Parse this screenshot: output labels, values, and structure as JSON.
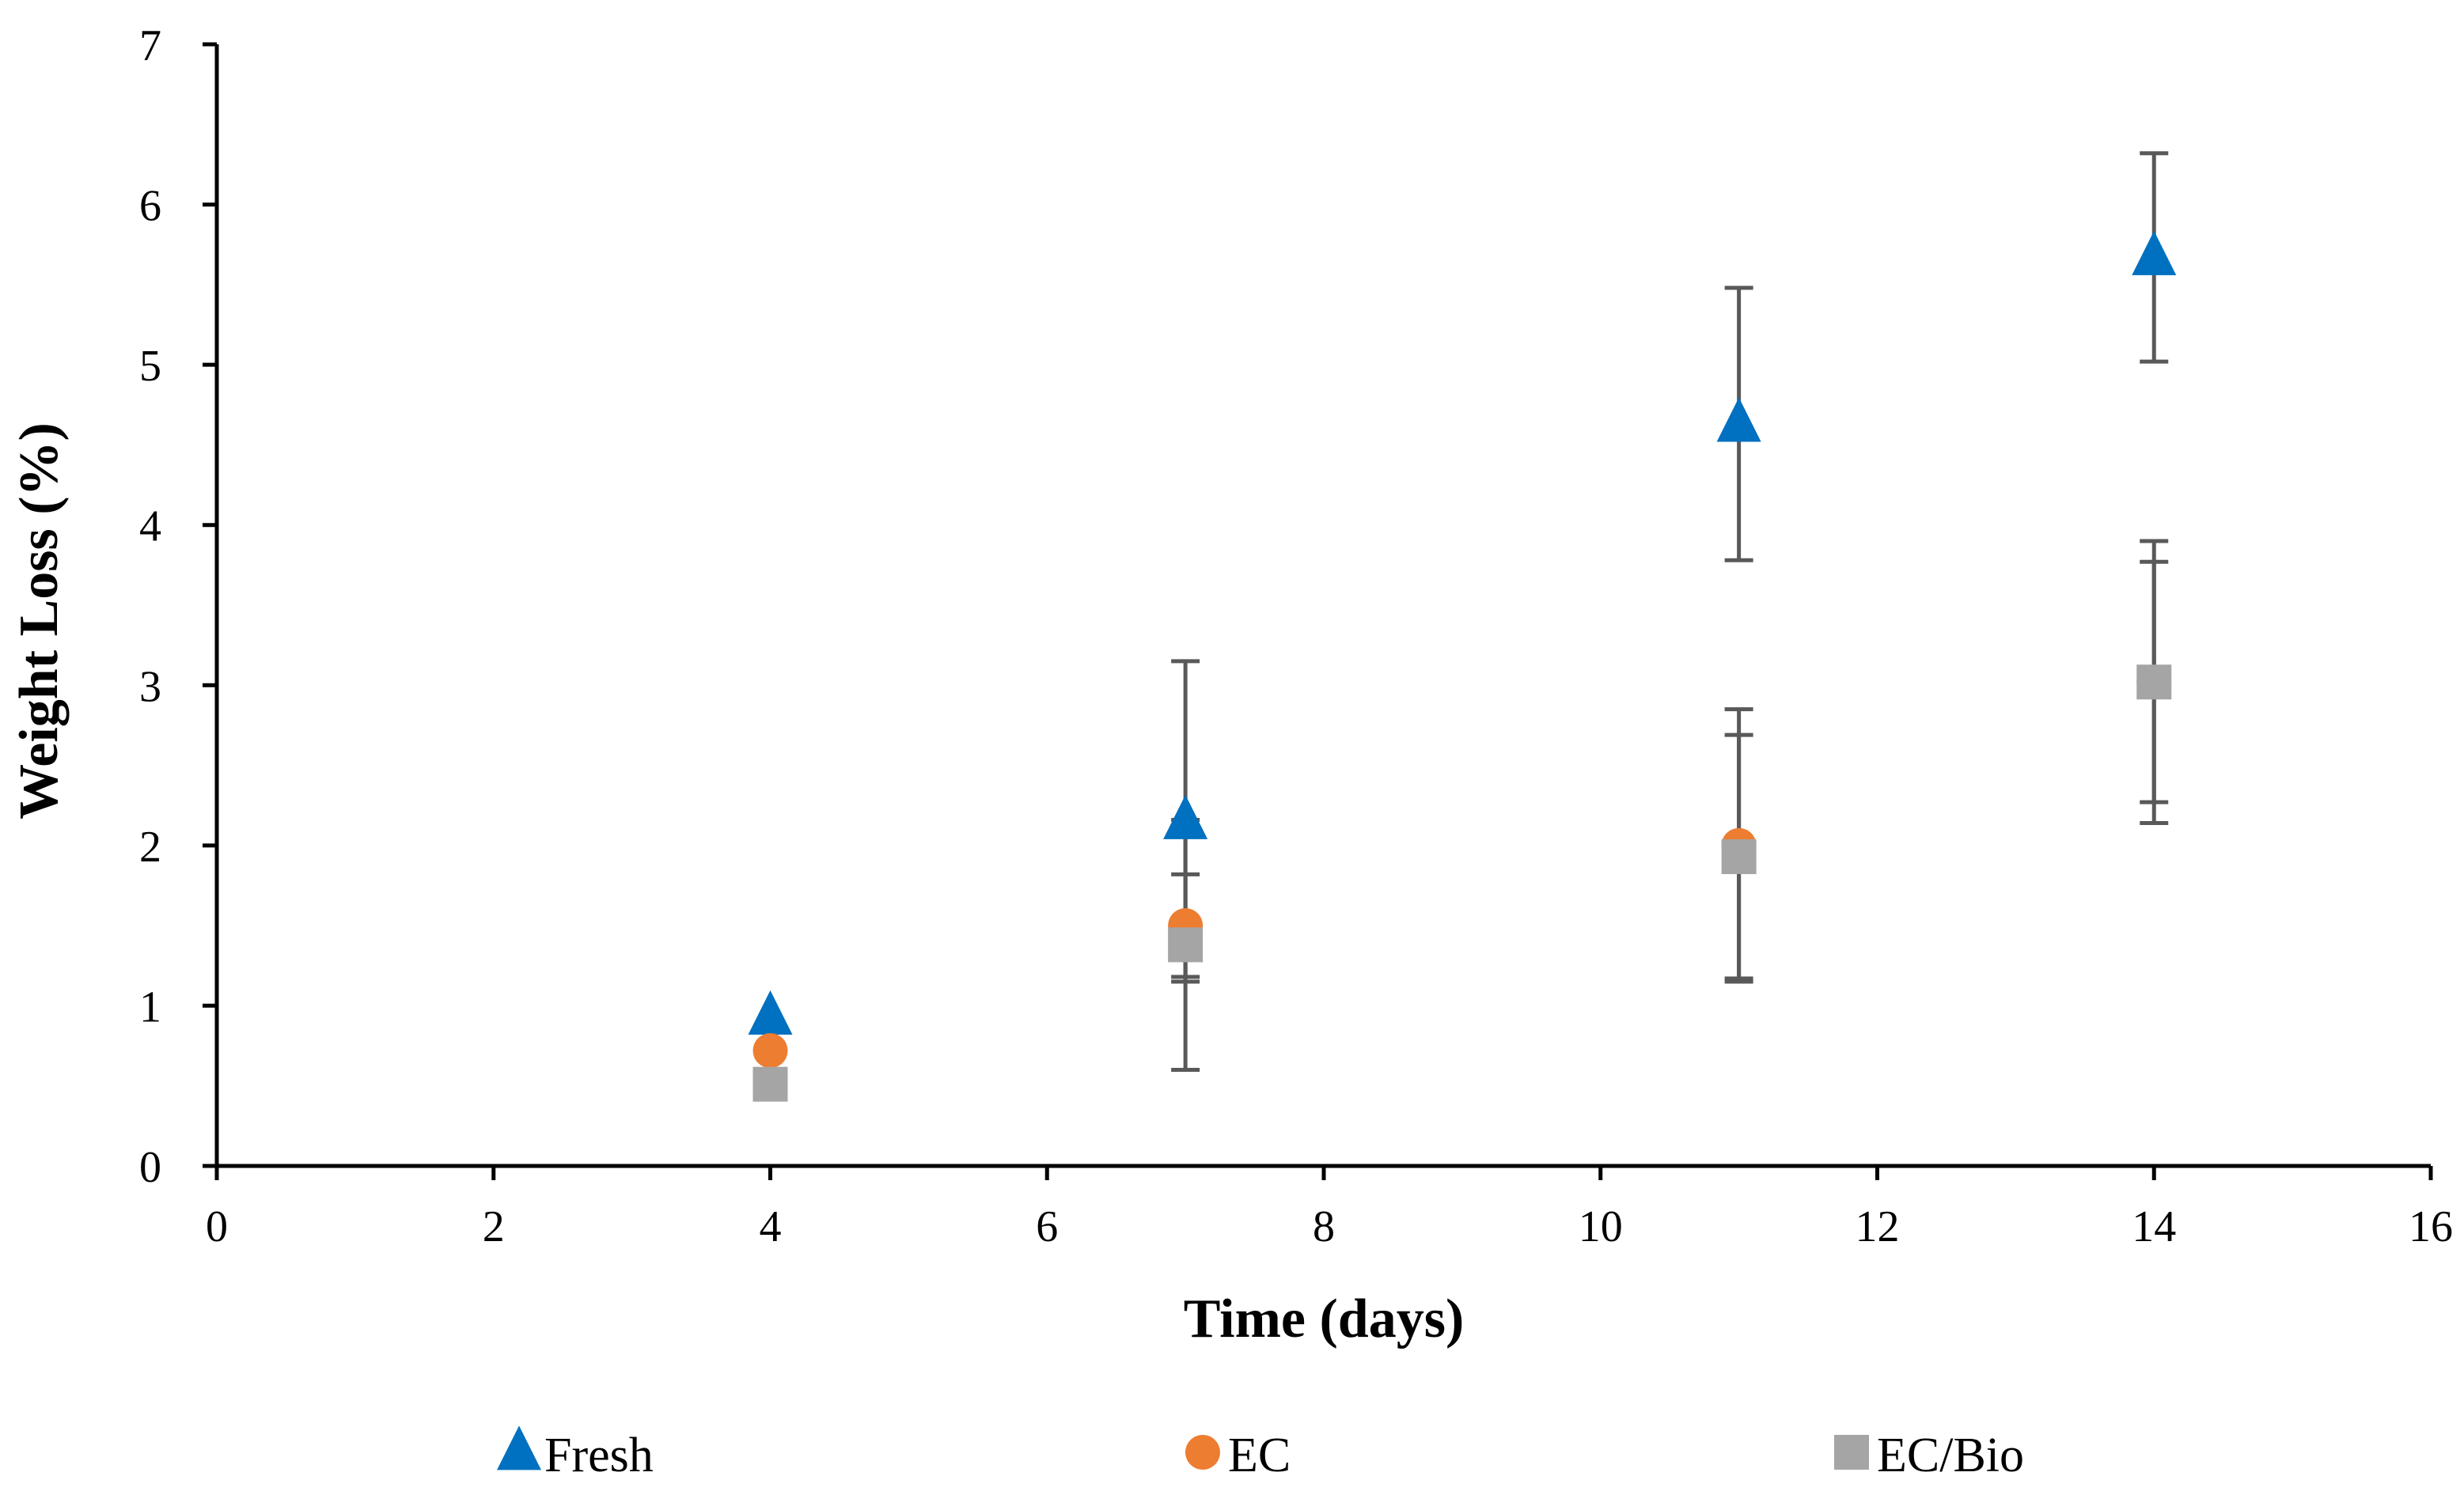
{
  "chart_data": {
    "type": "scatter",
    "title": "",
    "xlabel": "Time (days)",
    "ylabel": "Weight Loss (%)",
    "xlim": [
      0,
      16
    ],
    "ylim": [
      0,
      7
    ],
    "xticks": [
      0,
      2,
      4,
      6,
      8,
      10,
      12,
      14,
      16
    ],
    "yticks": [
      0,
      1,
      2,
      3,
      4,
      5,
      6,
      7
    ],
    "xtick_labels": [
      "0",
      "2",
      "4",
      "6",
      "8",
      "10",
      "12",
      "14",
      "16"
    ],
    "ytick_labels": [
      "0",
      "1",
      "2",
      "3",
      "4",
      "5",
      "6",
      "7"
    ],
    "grid": false,
    "legend_position": "bottom",
    "series": [
      {
        "name": "Fresh",
        "marker": "triangle",
        "color": "#0070C0",
        "x": [
          4,
          7,
          11,
          14
        ],
        "y": [
          0.93,
          2.15,
          4.63,
          5.67
        ],
        "error": [
          null,
          1.0,
          0.85,
          0.65
        ]
      },
      {
        "name": "EC",
        "marker": "circle",
        "color": "#ED7D31",
        "x": [
          4,
          7,
          11,
          14
        ],
        "y": [
          0.72,
          1.5,
          2.0,
          3.02
        ],
        "error": [
          null,
          0.32,
          0.85,
          0.88
        ]
      },
      {
        "name": "EC/Bio",
        "marker": "square",
        "color": "#A5A5A5",
        "x": [
          4,
          7,
          11,
          14
        ],
        "y": [
          0.51,
          1.38,
          1.93,
          3.02
        ],
        "error": [
          null,
          0.78,
          0.76,
          0.75
        ]
      }
    ],
    "error_bar_color": "#595959",
    "axis_color": "#000000"
  }
}
